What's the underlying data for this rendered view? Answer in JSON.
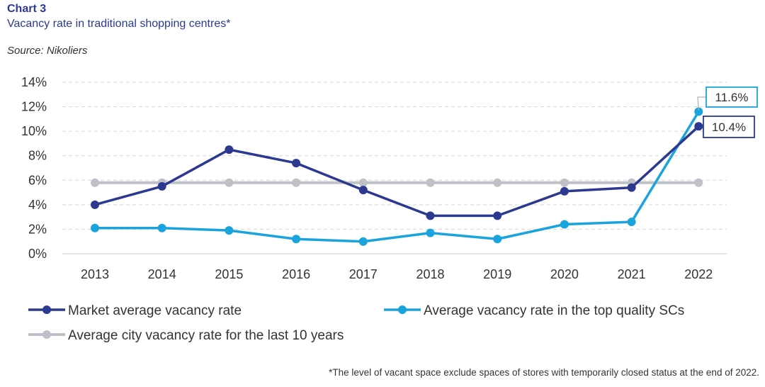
{
  "header": {
    "chart_number": "Chart 3",
    "title": "Vacancy rate in traditional shopping centres*",
    "source": "Source: Nikoliers"
  },
  "footnote": "*The level of vacant space exclude spaces of stores with temporarily closed status at the end of 2022.",
  "chart_data": {
    "type": "line",
    "x": [
      "2013",
      "2014",
      "2015",
      "2016",
      "2017",
      "2018",
      "2019",
      "2020",
      "2021",
      "2022"
    ],
    "ylim": [
      0,
      14
    ],
    "yticks": [
      0,
      2,
      4,
      6,
      8,
      10,
      12,
      14
    ],
    "ytick_labels": [
      "0%",
      "2%",
      "4%",
      "6%",
      "8%",
      "10%",
      "12%",
      "14%"
    ],
    "grid": "horizontal dashed",
    "legend_position": "bottom",
    "series": [
      {
        "name": "Market average vacancy rate",
        "color": "#2b3990",
        "values": [
          4.0,
          5.5,
          8.5,
          7.4,
          5.2,
          3.1,
          3.1,
          5.1,
          5.4,
          10.4
        ]
      },
      {
        "name": "Average vacancy rate in the top quality SCs",
        "color": "#1aa3dc",
        "values": [
          2.1,
          2.1,
          1.9,
          1.2,
          1.0,
          1.7,
          1.2,
          2.4,
          2.6,
          11.6
        ]
      },
      {
        "name": "Average city vacancy rate for the last 10 years",
        "color": "#c0c0c8",
        "values": [
          5.8,
          5.8,
          5.8,
          5.8,
          5.8,
          5.8,
          5.8,
          5.8,
          5.8,
          5.8
        ]
      }
    ],
    "annotations": [
      {
        "series": 1,
        "index": 9,
        "text": "11.6%"
      },
      {
        "series": 0,
        "index": 9,
        "text": "10.4%"
      }
    ]
  }
}
